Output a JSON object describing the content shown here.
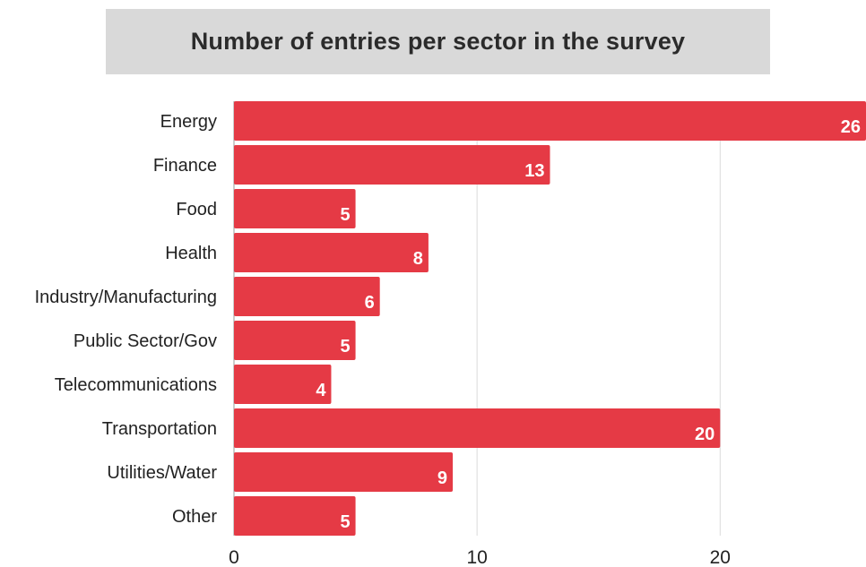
{
  "chart_data": {
    "type": "bar",
    "orientation": "horizontal",
    "title": "Number of entries per sector in the survey",
    "categories": [
      "Energy",
      "Finance",
      "Food",
      "Health",
      "Industry/Manufacturing",
      "Public Sector/Gov",
      "Telecommunications",
      "Transportation",
      "Utilities/Water",
      "Other"
    ],
    "values": [
      26,
      13,
      5,
      8,
      6,
      5,
      4,
      20,
      9,
      5
    ],
    "xlim": [
      0,
      26
    ],
    "xticks": [
      0,
      10,
      20
    ],
    "xlabel": "",
    "ylabel": "",
    "grid": "vertical",
    "bar_color": "#e53a45",
    "title_background": "#d9d9d9",
    "data_labels": true
  }
}
